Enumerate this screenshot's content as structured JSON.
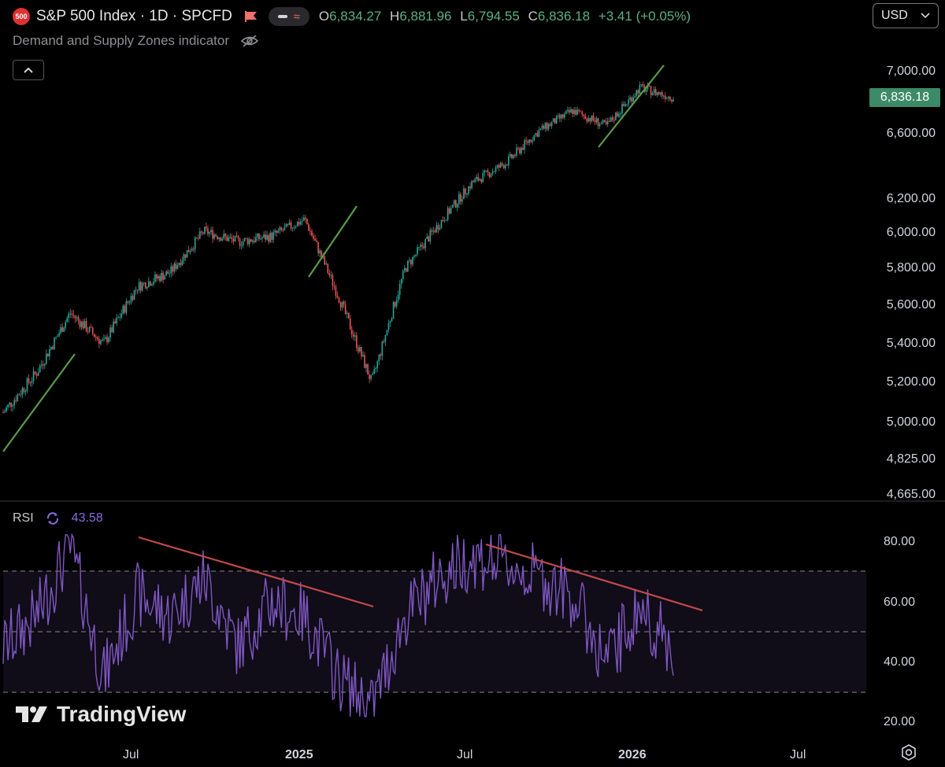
{
  "header": {
    "logo_text": "500",
    "title": "S&P 500 Index · 1D · SPCFD",
    "ohlc": {
      "open_label": "O",
      "open": "6,834.27",
      "high_label": "H",
      "high": "6,881.96",
      "low_label": "L",
      "low": "6,794.55",
      "close_label": "C",
      "close": "6,836.18",
      "change": "+3.41 (+0.05%)"
    },
    "indicator_name": "Demand and Supply Zones indicator",
    "currency": "USD"
  },
  "price_axis": {
    "ticks": [
      "7,000.00",
      "6,600.00",
      "6,200.00",
      "6,000.00",
      "5,800.00",
      "5,600.00",
      "5,400.00",
      "5,200.00",
      "5,000.00",
      "4,825.00",
      "4,665.00"
    ],
    "current_price": "6,836.18"
  },
  "rsi": {
    "label": "RSI",
    "value": "43.58",
    "ticks": [
      "80.00",
      "60.00",
      "40.00",
      "20.00"
    ],
    "upper_band": 70,
    "mid_band": 50,
    "lower_band": 30
  },
  "time_axis": {
    "labels": [
      "Jul",
      "2025",
      "Jul",
      "2026",
      "Jul"
    ]
  },
  "watermark": "TradingView",
  "colors": {
    "up": "#26a69a",
    "down": "#ef5350",
    "trend_green": "#5b9a4a",
    "trend_red": "#c04a4a",
    "rsi_line": "#7e57c2",
    "accent_green": "#5bb085"
  },
  "chart_data": {
    "type": "line",
    "title": "S&P 500 Index · 1D · SPCFD",
    "xlabel": "",
    "ylabel": "",
    "x": [
      "2024-05",
      "2024-06",
      "2024-07",
      "2024-08",
      "2024-09",
      "2024-10",
      "2024-11",
      "2024-12",
      "2025-01",
      "2025-02",
      "2025-03",
      "2025-04",
      "2025-05",
      "2025-06",
      "2025-07",
      "2025-08",
      "2025-09",
      "2025-10",
      "2025-11",
      "2025-12",
      "2026-01"
    ],
    "series": [
      {
        "values": [
          5050,
          5250,
          5560,
          5400,
          5700,
          5780,
          6010,
          5950,
          5980,
          6080,
          5650,
          5200,
          5800,
          6050,
          6300,
          6420,
          6620,
          6750,
          6650,
          6900,
          6836
        ]
      }
    ],
    "ylim": [
      4665,
      7050
    ],
    "rsi_values": [
      45,
      55,
      78,
      35,
      62,
      55,
      68,
      45,
      60,
      55,
      35,
      25,
      55,
      68,
      75,
      72,
      68,
      62,
      40,
      58,
      44
    ]
  }
}
